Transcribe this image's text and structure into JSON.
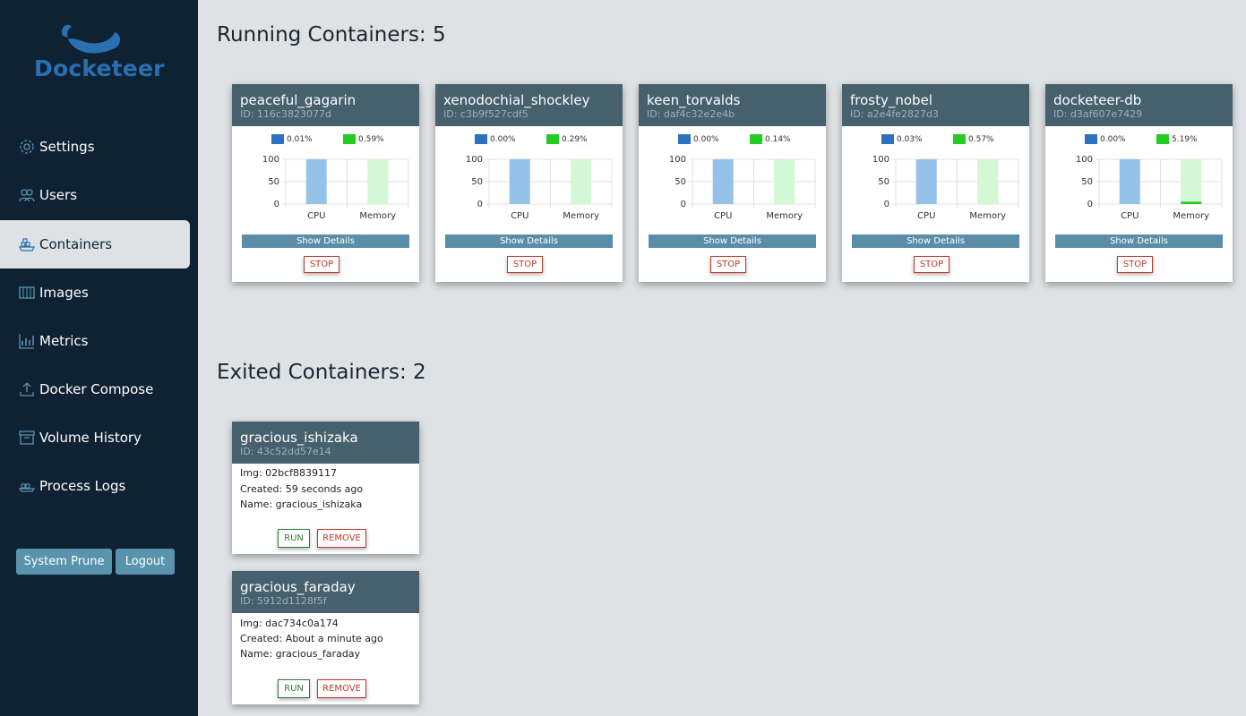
{
  "app": {
    "name": "Docketeer"
  },
  "sidebar": {
    "items": [
      {
        "label": "Settings",
        "icon": "gear-icon"
      },
      {
        "label": "Users",
        "icon": "users-icon"
      },
      {
        "label": "Containers",
        "icon": "containers-icon",
        "active": true
      },
      {
        "label": "Images",
        "icon": "images-icon"
      },
      {
        "label": "Metrics",
        "icon": "metrics-icon"
      },
      {
        "label": "Docker Compose",
        "icon": "upload-icon"
      },
      {
        "label": "Volume History",
        "icon": "archive-icon"
      },
      {
        "label": "Process Logs",
        "icon": "logs-icon"
      }
    ],
    "prune_label": "System Prune",
    "logout_label": "Logout"
  },
  "running": {
    "title": "Running Containers: 5",
    "cards": [
      {
        "name": "peaceful_gagarin",
        "id": "ID: 116c3823077d",
        "cpu_label": "0.01%",
        "mem_label": "0.59%"
      },
      {
        "name": "xenodochial_shockley",
        "id": "ID: c3b9f527cdf5",
        "cpu_label": "0.00%",
        "mem_label": "0.29%"
      },
      {
        "name": "keen_torvalds",
        "id": "ID: daf4c32e2e4b",
        "cpu_label": "0.00%",
        "mem_label": "0.14%"
      },
      {
        "name": "frosty_nobel",
        "id": "ID: a2e4fe2827d3",
        "cpu_label": "0.03%",
        "mem_label": "0.57%"
      },
      {
        "name": "docketeer-db",
        "id": "ID: d3af607e7429",
        "cpu_label": "0.00%",
        "mem_label": "5.19%"
      }
    ],
    "details_label": "Show Details",
    "stop_label": "STOP"
  },
  "exited": {
    "title": "Exited Containers: 2",
    "cards": [
      {
        "name": "gracious_ishizaka",
        "id": "ID: 43c52dd57e14",
        "img": "Img: 02bcf8839117",
        "created": "Created: 59 seconds ago",
        "cname": "Name: gracious_ishizaka"
      },
      {
        "name": "gracious_faraday",
        "id": "ID: 5912d1128f5f",
        "img": "Img: dac734c0a174",
        "created": "Created: About a minute ago",
        "cname": "Name: gracious_faraday"
      }
    ],
    "run_label": "RUN",
    "remove_label": "REMOVE"
  },
  "chart_data": [
    {
      "type": "bar",
      "categories": [
        "CPU",
        "Memory"
      ],
      "series": [
        {
          "name": "0.01%",
          "values": [
            100,
            0
          ]
        },
        {
          "name": "0.59%",
          "values": [
            0,
            100
          ]
        }
      ],
      "ylim": [
        0,
        100
      ],
      "yticks": [
        "100",
        "50",
        "0"
      ],
      "used": [
        0.01,
        0.59
      ]
    },
    {
      "type": "bar",
      "categories": [
        "CPU",
        "Memory"
      ],
      "series": [
        {
          "name": "0.00%",
          "values": [
            100,
            0
          ]
        },
        {
          "name": "0.29%",
          "values": [
            0,
            100
          ]
        }
      ],
      "ylim": [
        0,
        100
      ],
      "yticks": [
        "100",
        "50",
        "0"
      ],
      "used": [
        0.0,
        0.29
      ]
    },
    {
      "type": "bar",
      "categories": [
        "CPU",
        "Memory"
      ],
      "series": [
        {
          "name": "0.00%",
          "values": [
            100,
            0
          ]
        },
        {
          "name": "0.14%",
          "values": [
            0,
            100
          ]
        }
      ],
      "ylim": [
        0,
        100
      ],
      "yticks": [
        "100",
        "50",
        "0"
      ],
      "used": [
        0.0,
        0.14
      ]
    },
    {
      "type": "bar",
      "categories": [
        "CPU",
        "Memory"
      ],
      "series": [
        {
          "name": "0.03%",
          "values": [
            100,
            0
          ]
        },
        {
          "name": "0.57%",
          "values": [
            0,
            100
          ]
        }
      ],
      "ylim": [
        0,
        100
      ],
      "yticks": [
        "100",
        "50",
        "0"
      ],
      "used": [
        0.03,
        0.57
      ]
    },
    {
      "type": "bar",
      "categories": [
        "CPU",
        "Memory"
      ],
      "series": [
        {
          "name": "0.00%",
          "values": [
            100,
            0
          ]
        },
        {
          "name": "5.19%",
          "values": [
            0,
            100
          ]
        }
      ],
      "ylim": [
        0,
        100
      ],
      "yticks": [
        "100",
        "50",
        "0"
      ],
      "used": [
        0.0,
        5.19
      ]
    }
  ],
  "colors": {
    "sidebar": "#0f2233",
    "card_header": "#47606e",
    "cpu": "#2a72c0",
    "memory": "#22cc22",
    "cpu_bar": "#95c2e8",
    "mem_bar": "#d4f7d4",
    "accent": "#5a93ae"
  }
}
